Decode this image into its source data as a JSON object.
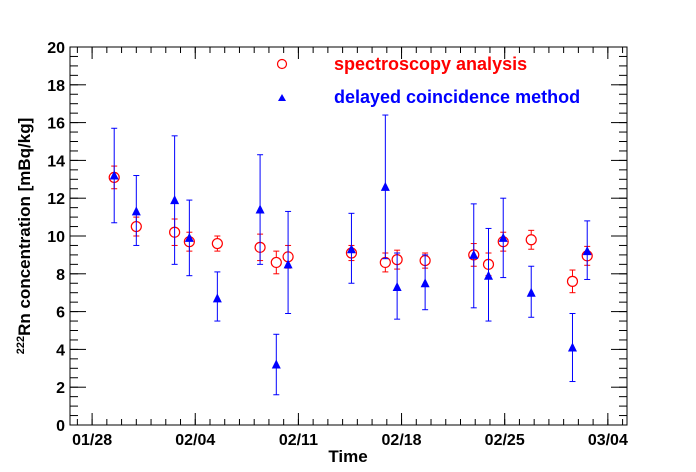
{
  "chart_data": {
    "type": "scatter",
    "xlabel": "Time",
    "ylabel_sup": "222",
    "ylabel_main": "Rn concentration [mBq/kg]",
    "xlim": [
      -1.5,
      36.3
    ],
    "ylim": [
      0,
      20
    ],
    "y_ticks": [
      0,
      2,
      4,
      6,
      8,
      10,
      12,
      14,
      16,
      18,
      20
    ],
    "y_minor_step": 0.5,
    "x_ticks": [
      {
        "label": "01/28",
        "day": 0
      },
      {
        "label": "02/04",
        "day": 7
      },
      {
        "label": "02/11",
        "day": 14
      },
      {
        "label": "02/18",
        "day": 21
      },
      {
        "label": "02/25",
        "day": 28
      },
      {
        "label": "03/04",
        "day": 35
      }
    ],
    "x_minor_step": 1,
    "legend_position": "top-center",
    "series": [
      {
        "name": "spectroscopy analysis",
        "marker": "open-circle",
        "color": "#ff0000",
        "points": [
          {
            "x": 1.5,
            "y": 13.1,
            "err": 0.6
          },
          {
            "x": 3.0,
            "y": 10.5,
            "err": 0.5
          },
          {
            "x": 5.6,
            "y": 10.2,
            "err": 0.7
          },
          {
            "x": 6.6,
            "y": 9.7,
            "err": 0.5
          },
          {
            "x": 8.5,
            "y": 9.6,
            "err": 0.4
          },
          {
            "x": 11.4,
            "y": 9.4,
            "err": 0.7
          },
          {
            "x": 12.5,
            "y": 8.6,
            "err": 0.6
          },
          {
            "x": 13.3,
            "y": 8.9,
            "err": 0.6
          },
          {
            "x": 17.6,
            "y": 9.1,
            "err": 0.4
          },
          {
            "x": 19.9,
            "y": 8.6,
            "err": 0.5
          },
          {
            "x": 20.7,
            "y": 8.75,
            "err": 0.5
          },
          {
            "x": 22.6,
            "y": 8.7,
            "err": 0.4
          },
          {
            "x": 25.9,
            "y": 9.0,
            "err": 0.6
          },
          {
            "x": 26.9,
            "y": 8.5,
            "err": 0.6
          },
          {
            "x": 27.9,
            "y": 9.7,
            "err": 0.5
          },
          {
            "x": 29.8,
            "y": 9.8,
            "err": 0.5
          },
          {
            "x": 32.6,
            "y": 7.6,
            "err": 0.6
          },
          {
            "x": 33.6,
            "y": 8.95,
            "err": 0.5
          }
        ]
      },
      {
        "name": "delayed coincidence method",
        "marker": "filled-triangle",
        "color": "#0000ff",
        "points": [
          {
            "x": 1.5,
            "y": 13.2,
            "lo": 10.7,
            "hi": 15.7
          },
          {
            "x": 3.0,
            "y": 11.3,
            "lo": 9.5,
            "hi": 13.2
          },
          {
            "x": 5.6,
            "y": 11.9,
            "lo": 8.5,
            "hi": 15.3
          },
          {
            "x": 6.6,
            "y": 9.9,
            "lo": 7.9,
            "hi": 11.9
          },
          {
            "x": 8.5,
            "y": 6.7,
            "lo": 5.5,
            "hi": 8.1
          },
          {
            "x": 11.4,
            "y": 11.4,
            "lo": 8.5,
            "hi": 14.3
          },
          {
            "x": 12.5,
            "y": 3.2,
            "lo": 1.6,
            "hi": 4.8
          },
          {
            "x": 13.3,
            "y": 8.5,
            "lo": 5.9,
            "hi": 11.3
          },
          {
            "x": 17.6,
            "y": 9.3,
            "lo": 7.5,
            "hi": 11.2
          },
          {
            "x": 19.9,
            "y": 12.6,
            "lo": 8.8,
            "hi": 16.4
          },
          {
            "x": 20.7,
            "y": 7.3,
            "lo": 5.6,
            "hi": 9.1
          },
          {
            "x": 22.6,
            "y": 7.5,
            "lo": 6.1,
            "hi": 9.0
          },
          {
            "x": 25.9,
            "y": 9.0,
            "lo": 6.2,
            "hi": 11.7
          },
          {
            "x": 26.9,
            "y": 7.9,
            "lo": 5.5,
            "hi": 10.4
          },
          {
            "x": 27.9,
            "y": 9.9,
            "lo": 7.8,
            "hi": 12.0
          },
          {
            "x": 29.8,
            "y": 7.0,
            "lo": 5.7,
            "hi": 8.4
          },
          {
            "x": 32.6,
            "y": 4.1,
            "lo": 2.3,
            "hi": 5.9
          },
          {
            "x": 33.6,
            "y": 9.2,
            "lo": 7.7,
            "hi": 10.8
          }
        ]
      }
    ]
  }
}
